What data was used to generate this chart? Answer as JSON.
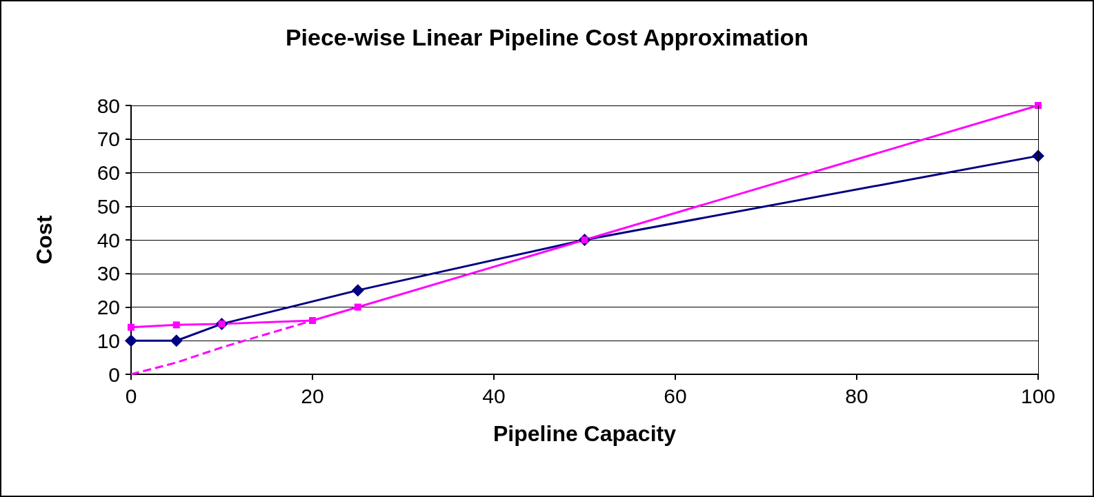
{
  "chart_data": {
    "type": "line",
    "title": "Piece-wise Linear Pipeline Cost Approximation",
    "xlabel": "Pipeline Capacity",
    "ylabel": "Cost",
    "xlim": [
      0,
      100
    ],
    "xticks": [
      0,
      20,
      40,
      60,
      80,
      100
    ],
    "ylim": [
      0,
      80
    ],
    "yticks": [
      0,
      10,
      20,
      30,
      40,
      50,
      60,
      70,
      80
    ],
    "grid": "y",
    "series": [
      {
        "color": "#000080",
        "marker": "diamond",
        "line_style": "solid",
        "x": [
          0,
          5,
          10,
          25,
          50,
          100
        ],
        "values": [
          10,
          10,
          15,
          25,
          40,
          65
        ]
      },
      {
        "color": "#ff00ff",
        "marker": "square",
        "line_style": "solid",
        "x": [
          0,
          5,
          10,
          20,
          25,
          50,
          100
        ],
        "values": [
          14,
          14.7,
          15,
          16,
          20,
          40,
          80
        ]
      },
      {
        "color": "#ff00ff",
        "marker": "none",
        "line_style": "dashed",
        "x": [
          0,
          5,
          10,
          20
        ],
        "values": [
          0,
          3.5,
          8,
          16
        ]
      }
    ]
  }
}
